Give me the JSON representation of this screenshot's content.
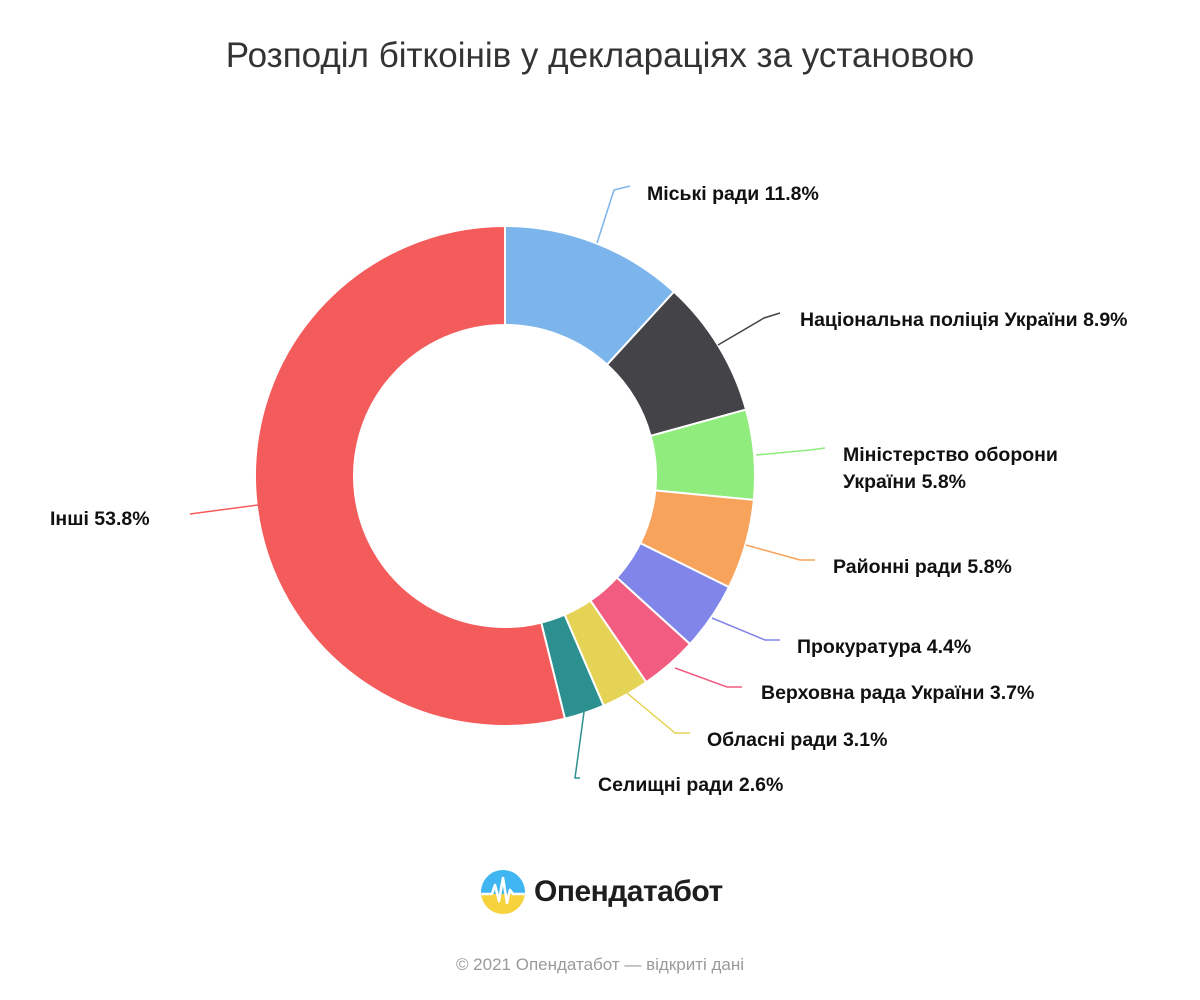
{
  "title": "Розподіл біткоінів у деклараціях за установою",
  "chart_data": {
    "type": "pie",
    "variant": "donut",
    "title": "Розподіл біткоінів у деклараціях за установою",
    "slices": [
      {
        "name": "Міські ради",
        "value": 11.8,
        "color": "#7cb5ec",
        "label": "Міські ради 11.8%"
      },
      {
        "name": "Національна поліція України",
        "value": 8.9,
        "color": "#434348",
        "label": "Національна поліція України 8.9%"
      },
      {
        "name": "Міністерство оборони України",
        "value": 5.8,
        "color": "#90ed7d",
        "label": [
          "Міністерство оборони",
          "України 5.8%"
        ]
      },
      {
        "name": "Районні ради",
        "value": 5.8,
        "color": "#f7a35c",
        "label": "Районні ради 5.8%"
      },
      {
        "name": "Прокуратура",
        "value": 4.4,
        "color": "#8085e9",
        "label": "Прокуратура 4.4%"
      },
      {
        "name": "Верховна рада України",
        "value": 3.7,
        "color": "#f15c80",
        "label": "Верховна рада України 3.7%"
      },
      {
        "name": "Обласні ради",
        "value": 3.1,
        "color": "#e4d354",
        "label": "Обласні ради 3.1%"
      },
      {
        "name": "Селищні ради",
        "value": 2.6,
        "color": "#2b908f",
        "label": "Селищні ради 2.6%"
      },
      {
        "name": "Інші",
        "value": 53.8,
        "color": "#f45b5b",
        "label": "Інші 53.8%"
      }
    ],
    "legend": "none",
    "data_labels": "outside-with-connectors"
  },
  "brand": {
    "name": "Опендатабот",
    "logo_icon": "opendatabot-logo-icon"
  },
  "footer": {
    "note": "© 2021 Опендатабот — відкриті дані"
  }
}
